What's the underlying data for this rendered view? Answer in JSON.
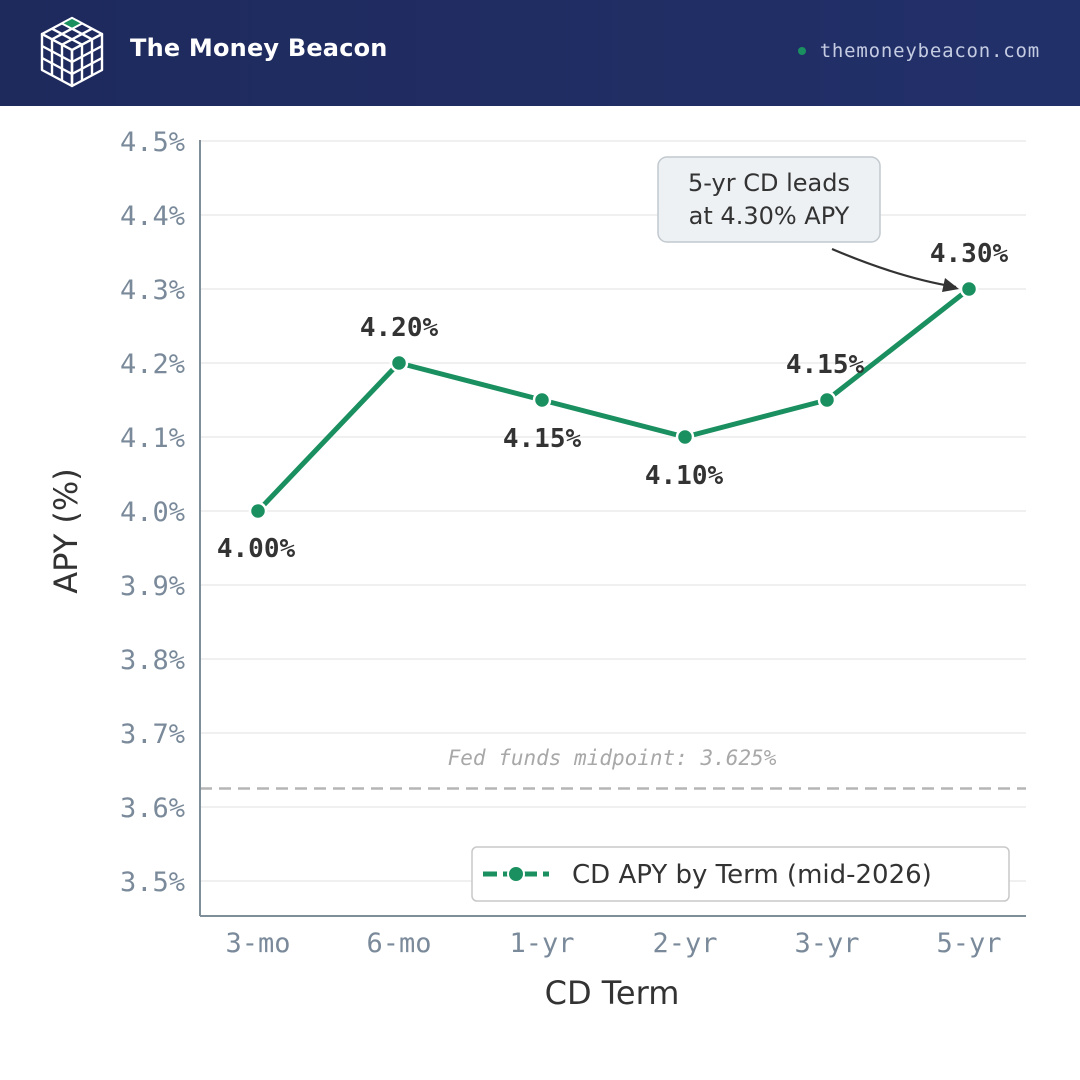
{
  "header": {
    "brand": "The Money Beacon",
    "site": "themoneybeacon.com",
    "logo_icon": "cube-grid-icon",
    "accent_color": "#1a8f5f",
    "background_color": "#1e2a5c"
  },
  "chart_data": {
    "type": "line",
    "title": "",
    "xlabel": "CD Term",
    "ylabel": "APY (%)",
    "categories": [
      "3-mo",
      "6-mo",
      "1-yr",
      "2-yr",
      "3-yr",
      "5-yr"
    ],
    "series": [
      {
        "name": "CD APY by Term (mid-2026)",
        "values": [
          4.0,
          4.2,
          4.15,
          4.1,
          4.15,
          4.3
        ],
        "labels": [
          "4.00%",
          "4.20%",
          "4.15%",
          "4.10%",
          "4.15%",
          "4.30%"
        ],
        "color": "#1a8f5f"
      }
    ],
    "ylim": [
      3.5,
      4.5
    ],
    "yticks": [
      3.5,
      3.6,
      3.7,
      3.8,
      3.9,
      4.0,
      4.1,
      4.2,
      4.3,
      4.4,
      4.5
    ],
    "ytick_labels": [
      "3.5%",
      "3.6%",
      "3.7%",
      "3.8%",
      "3.9%",
      "4.0%",
      "4.1%",
      "4.2%",
      "4.3%",
      "4.4%",
      "4.5%"
    ],
    "grid": true,
    "legend_position": "bottom-right",
    "reference_line": {
      "value": 3.625,
      "label": "Fed funds midpoint: 3.625%",
      "color": "#b5b5b5"
    },
    "annotation": {
      "lines": [
        "5-yr CD leads",
        "at 4.30% APY"
      ],
      "target_category": "5-yr"
    }
  }
}
